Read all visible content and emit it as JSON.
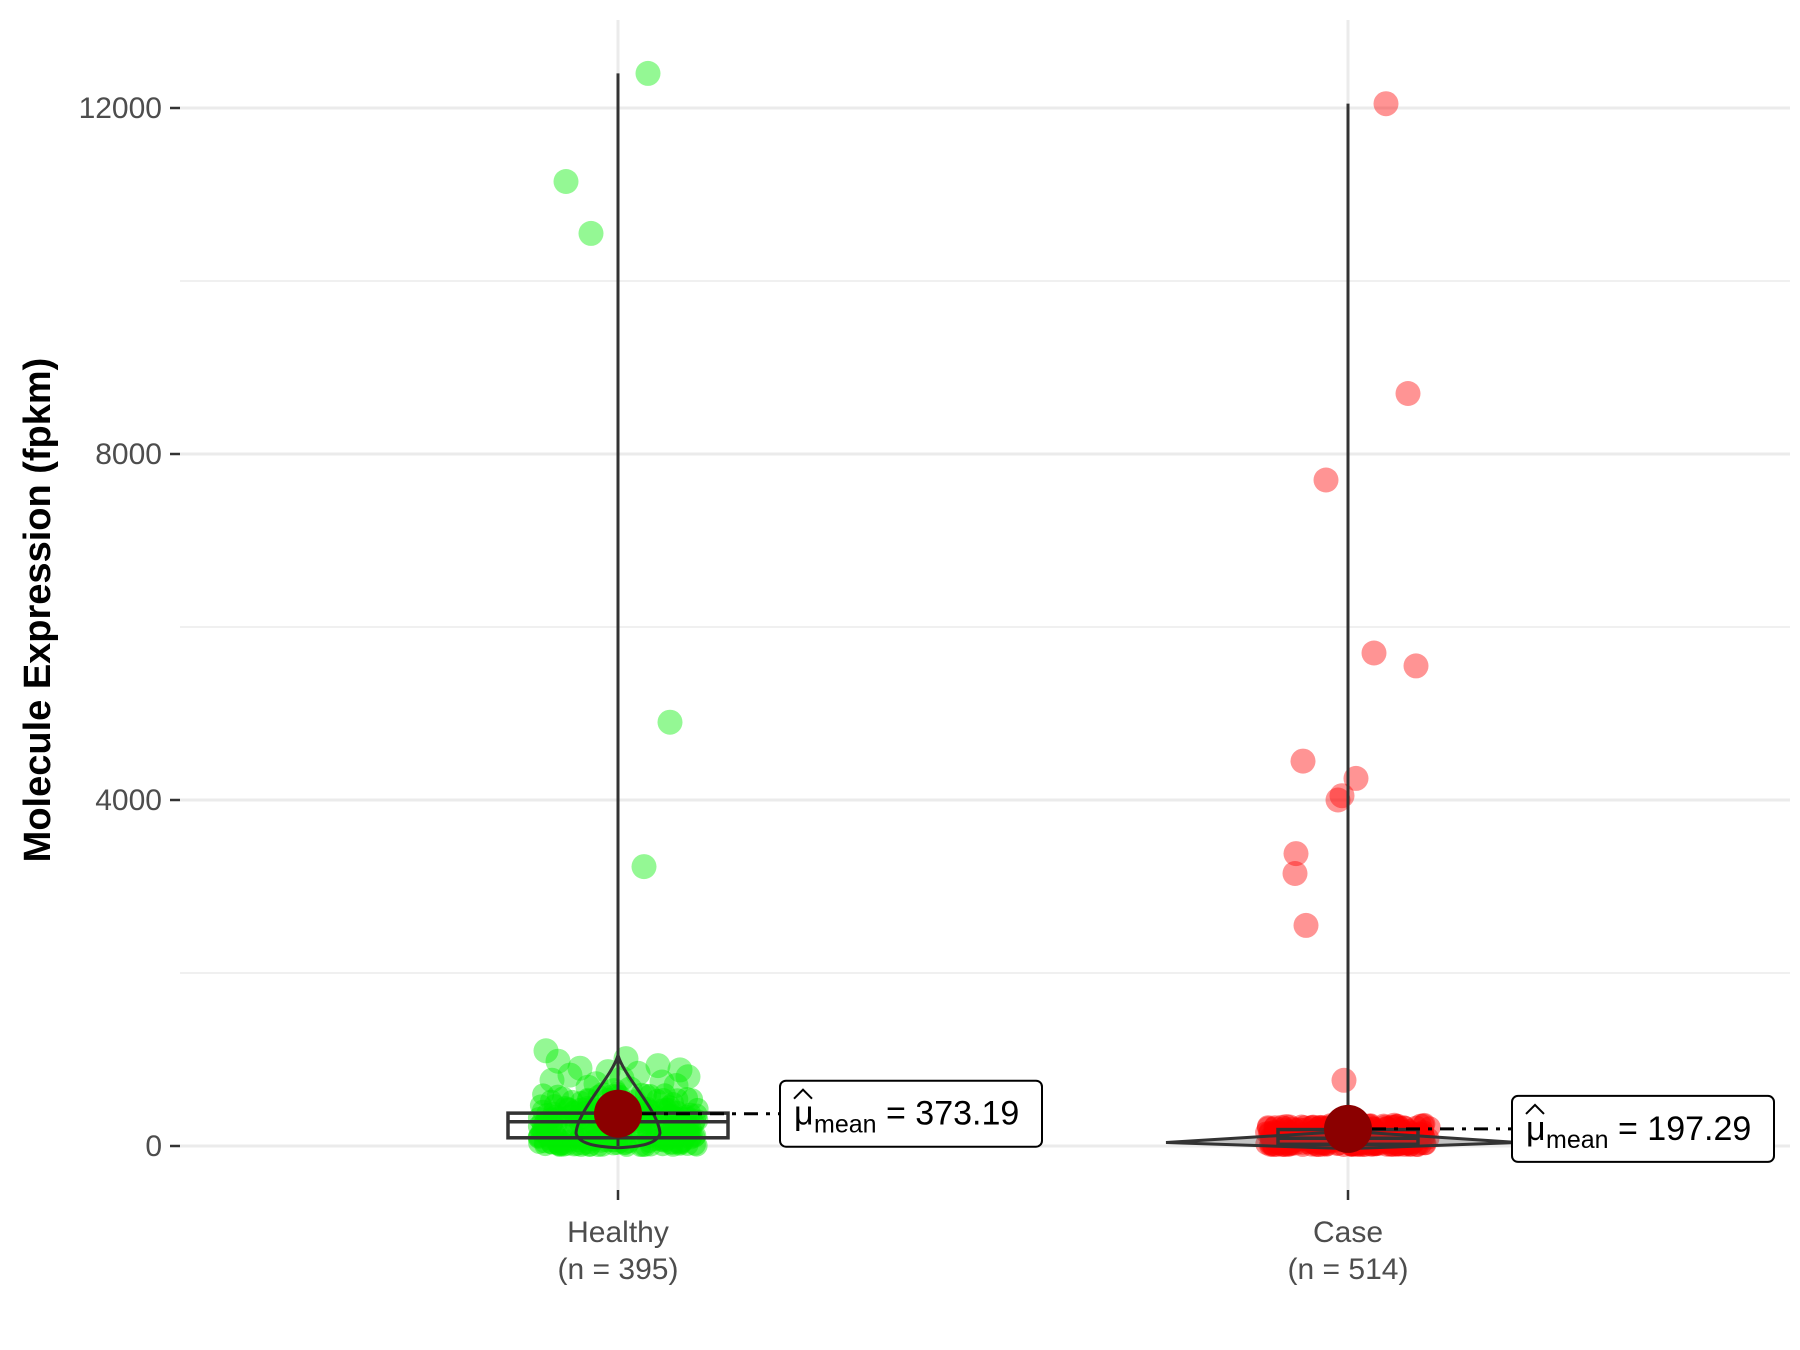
{
  "chart_data": {
    "type": "violin-box-scatter",
    "ylabel": "Molecule Expression (fpkm)",
    "xlabel": "",
    "ylim": [
      -650,
      13300
    ],
    "y_ticks": [
      0,
      4000,
      8000,
      12000
    ],
    "y_minor_ticks": [
      2000,
      6000,
      10000
    ],
    "grid": true,
    "legend": "none",
    "groups": [
      {
        "name": "Healthy",
        "n_label": "(n = 395)",
        "color": "#00ee00",
        "box": {
          "q1": 95,
          "median": 280,
          "q3": 380
        },
        "violin_max": 12400,
        "mean": 373.19,
        "mean_label": "= 373.19",
        "mean_symbol": "μ",
        "mean_subscript": "mean",
        "outliers": [
          12400,
          11150,
          10550,
          4900,
          3230,
          1100,
          1010,
          980,
          930,
          900,
          880,
          860,
          840,
          820,
          800,
          780,
          760,
          740,
          720,
          700,
          680,
          660,
          640
        ]
      },
      {
        "name": "Case",
        "n_label": "(n = 514)",
        "color": "#ff0000",
        "box": {
          "q1": 20,
          "median": 90,
          "q3": 190
        },
        "violin_max": 12050,
        "mean": 197.29,
        "mean_label": "= 197.29",
        "mean_symbol": "μ",
        "mean_subscript": "mean",
        "outliers": [
          12050,
          8700,
          7700,
          5700,
          5550,
          4450,
          4250,
          4050,
          4000,
          3380,
          3150,
          2550,
          760
        ]
      }
    ]
  },
  "colors": {
    "mean_point": "#8b0000",
    "grid": "#ebebeb",
    "box_stroke": "#333333"
  }
}
